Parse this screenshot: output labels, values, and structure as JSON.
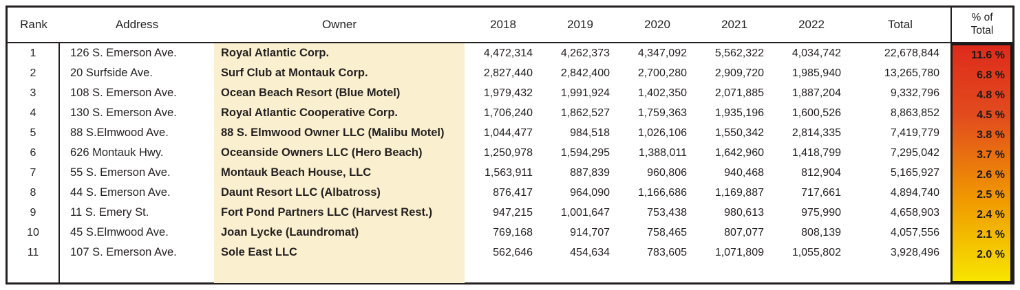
{
  "table": {
    "headers": {
      "rank": "Rank",
      "address": "Address",
      "owner": "Owner",
      "y2018": "2018",
      "y2019": "2019",
      "y2020": "2020",
      "y2021": "2021",
      "y2022": "2022",
      "total": "Total",
      "pct_line1": "% of",
      "pct_line2": "Total"
    },
    "rows": [
      {
        "rank": "1",
        "address": "126 S. Emerson Ave.",
        "owner": "Royal Atlantic Corp.",
        "y2018": "4,472,314",
        "y2019": "4,262,373",
        "y2020": "4,347,092",
        "y2021": "5,562,322",
        "y2022": "4,034,742",
        "total": "22,678,844",
        "pct": "11.6 %"
      },
      {
        "rank": "2",
        "address": "20 Surfside Ave.",
        "owner": "Surf Club at Montauk Corp.",
        "y2018": "2,827,440",
        "y2019": "2,842,400",
        "y2020": "2,700,280",
        "y2021": "2,909,720",
        "y2022": "1,985,940",
        "total": "13,265,780",
        "pct": "6.8 %"
      },
      {
        "rank": "3",
        "address": "108 S. Emerson Ave.",
        "owner": "Ocean Beach Resort (Blue Motel)",
        "y2018": "1,979,432",
        "y2019": "1,991,924",
        "y2020": "1,402,350",
        "y2021": "2,071,885",
        "y2022": "1,887,204",
        "total": "9,332,796",
        "pct": "4.8 %"
      },
      {
        "rank": "4",
        "address": "130 S. Emerson Ave.",
        "owner": "Royal Atlantic Cooperative Corp.",
        "y2018": "1,706,240",
        "y2019": "1,862,527",
        "y2020": "1,759,363",
        "y2021": "1,935,196",
        "y2022": "1,600,526",
        "total": "8,863,852",
        "pct": "4.5 %"
      },
      {
        "rank": "5",
        "address": "88 S.Elmwood Ave.",
        "owner": "88 S. Elmwood Owner LLC (Malibu Motel)",
        "y2018": "1,044,477",
        "y2019": "984,518",
        "y2020": "1,026,106",
        "y2021": "1,550,342",
        "y2022": "2,814,335",
        "total": "7,419,779",
        "pct": "3.8 %"
      },
      {
        "rank": "6",
        "address": "626 Montauk Hwy.",
        "owner": "Oceanside Owners LLC (Hero Beach)",
        "y2018": "1,250,978",
        "y2019": "1,594,295",
        "y2020": "1,388,011",
        "y2021": "1,642,960",
        "y2022": "1,418,799",
        "total": "7,295,042",
        "pct": "3.7 %"
      },
      {
        "rank": "7",
        "address": "55 S. Emerson Ave.",
        "owner": "Montauk Beach House, LLC",
        "y2018": "1,563,911",
        "y2019": "887,839",
        "y2020": "960,806",
        "y2021": "940,468",
        "y2022": "812,904",
        "total": "5,165,927",
        "pct": "2.6 %"
      },
      {
        "rank": "8",
        "address": "44 S. Emerson Ave.",
        "owner": "Daunt Resort LLC (Albatross)",
        "y2018": "876,417",
        "y2019": "964,090",
        "y2020": "1,166,686",
        "y2021": "1,169,887",
        "y2022": "717,661",
        "total": "4,894,740",
        "pct": "2.5 %"
      },
      {
        "rank": "9",
        "address": "11 S. Emery St.",
        "owner": "Fort Pond Partners LLC (Harvest Rest.)",
        "y2018": "947,215",
        "y2019": "1,001,647",
        "y2020": "753,438",
        "y2021": "980,613",
        "y2022": "975,990",
        "total": "4,658,903",
        "pct": "2.4 %"
      },
      {
        "rank": "10",
        "address": "45 S.Elmwood Ave.",
        "owner": "Joan Lycke (Laundromat)",
        "y2018": "769,168",
        "y2019": "914,707",
        "y2020": "758,465",
        "y2021": "807,077",
        "y2022": "808,139",
        "total": "4,057,556",
        "pct": "2.1 %"
      },
      {
        "rank": "11",
        "address": "107 S. Emerson Ave.",
        "owner": "Sole East LLC",
        "y2018": "562,646",
        "y2019": "454,634",
        "y2020": "783,605",
        "y2021": "1,071,809",
        "y2022": "1,055,802",
        "total": "3,928,496",
        "pct": "2.0 %"
      }
    ],
    "colors": {
      "owner_bg": "#faf0cf",
      "heat_top": "#de2b1b",
      "heat_upper": "#e24c1e",
      "heat_mid": "#f09a00",
      "heat_bottom": "#f7e500",
      "border": "#231f20"
    }
  }
}
